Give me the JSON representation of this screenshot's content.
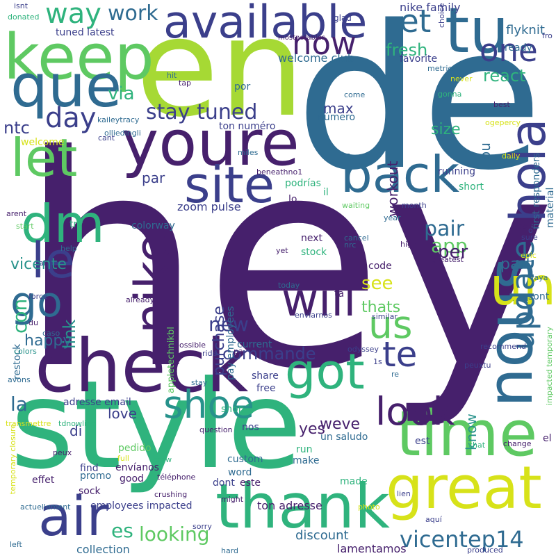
{
  "palette": {
    "dark_purple": "#46206c",
    "indigo": "#3b3f8b",
    "blue": "#2f6b91",
    "teal": "#27928b",
    "green": "#2fb37d",
    "light_green": "#5ec962",
    "lime": "#a6d934",
    "yellow": "#d7e219"
  },
  "words": [
    {
      "text": "hey",
      "color": "#46206c"
    },
    {
      "text": "de",
      "color": "#2f6b91"
    },
    {
      "text": "en",
      "color": "#a6d934"
    },
    {
      "text": "style",
      "color": "#2fb37d"
    },
    {
      "text": "check",
      "color": "#46206c"
    },
    {
      "text": "youre",
      "color": "#46206c"
    },
    {
      "text": "keep",
      "color": "#5ec962"
    },
    {
      "text": "que",
      "color": "#2f6b91"
    },
    {
      "text": "available",
      "color": "#3b3f8b"
    },
    {
      "text": "tu",
      "color": "#2f6b91"
    },
    {
      "text": "time",
      "color": "#5ec962"
    },
    {
      "text": "great",
      "color": "#d7e219"
    },
    {
      "text": "thank",
      "color": "#2fb37d"
    },
    {
      "text": "air",
      "color": "#3b3f8b"
    },
    {
      "text": "nous",
      "color": "#2f6b91"
    },
    {
      "text": "un",
      "color": "#d7e219"
    },
    {
      "text": "got",
      "color": "#2fb37d"
    },
    {
      "text": "back",
      "color": "#2f6b91"
    },
    {
      "text": "site",
      "color": "#3b3f8b"
    },
    {
      "text": "nike",
      "color": "#46206c"
    },
    {
      "text": "hola",
      "color": "#3b3f8b"
    },
    {
      "text": "let",
      "color": "#5ec962"
    },
    {
      "text": "dm",
      "color": "#2fb37d"
    },
    {
      "text": "le",
      "color": "#3b3f8b"
    },
    {
      "text": "go",
      "color": "#2f6b91"
    },
    {
      "text": "will",
      "color": "#46206c"
    },
    {
      "text": "shoe",
      "color": "#27928b"
    },
    {
      "text": "look",
      "color": "#46206c"
    },
    {
      "text": "us",
      "color": "#5ec962"
    },
    {
      "text": "te",
      "color": "#3b3f8b"
    },
    {
      "text": "update",
      "color": "#2f6b91"
    },
    {
      "text": "one",
      "color": "#3b3f8b"
    },
    {
      "text": "now",
      "color": "#46206c"
    },
    {
      "text": "et",
      "color": "#2f6b91"
    },
    {
      "text": "way",
      "color": "#2fb37d"
    },
    {
      "text": "day",
      "color": "#3b3f8b"
    },
    {
      "text": "work",
      "color": "#2f6b91"
    },
    {
      "text": "stay tuned",
      "color": "#3b3f8b"
    },
    {
      "text": "vicentep14",
      "color": "#2f6b91"
    },
    {
      "text": "looking",
      "color": "#5ec962"
    },
    {
      "text": "collection",
      "color": "#2f6b91"
    },
    {
      "text": "lamentamos",
      "color": "#46206c"
    },
    {
      "text": "discount",
      "color": "#2f6b91"
    },
    {
      "text": "ton adresse",
      "color": "#46206c"
    },
    {
      "text": "es",
      "color": "#2fb37d"
    },
    {
      "text": "commande",
      "color": "#3b3f8b"
    },
    {
      "text": "new",
      "color": "#3b3f8b"
    },
    {
      "text": "happy",
      "color": "#2f6b91"
    },
    {
      "text": "la",
      "color": "#2f6b91"
    },
    {
      "text": "love",
      "color": "#3b3f8b"
    },
    {
      "text": "vicente",
      "color": "#27928b"
    },
    {
      "text": "link",
      "color": "#27928b"
    },
    {
      "text": "con",
      "color": "#2fb37d"
    },
    {
      "text": "ntc",
      "color": "#3b3f8b"
    },
    {
      "text": "via",
      "color": "#2fb37d"
    },
    {
      "text": "pair",
      "color": "#2f6b91"
    },
    {
      "text": "app",
      "color": "#5ec962"
    },
    {
      "text": "per",
      "color": "#46206c"
    },
    {
      "text": "part",
      "color": "#2f6b91"
    },
    {
      "text": "see",
      "color": "#d7e219"
    },
    {
      "text": "thats",
      "color": "#5ec962"
    },
    {
      "text": "know",
      "color": "#27928b"
    },
    {
      "text": "weve",
      "color": "#46206c"
    },
    {
      "text": "yes",
      "color": "#46206c"
    },
    {
      "text": "purchase",
      "color": "#3b3f8b"
    },
    {
      "text": "workout",
      "color": "#46206c"
    },
    {
      "text": "size",
      "color": "#2fb37d"
    },
    {
      "text": "react",
      "color": "#2fb37d"
    },
    {
      "text": "fresh",
      "color": "#2fb37d"
    },
    {
      "text": "max",
      "color": "#3b3f8b"
    },
    {
      "text": "ou",
      "color": "#2f6b91"
    },
    {
      "text": "par",
      "color": "#3b3f8b"
    },
    {
      "text": "di",
      "color": "#3b3f8b"
    },
    {
      "text": "zoom pulse",
      "color": "#3b3f8b"
    },
    {
      "text": "pay employees",
      "color": "#2f6b91"
    },
    {
      "text": "appletechnikbl",
      "color": "#5ec962"
    },
    {
      "text": "welcome club",
      "color": "#2f6b91"
    },
    {
      "text": "favorite",
      "color": "#3b3f8b"
    },
    {
      "text": "nike family",
      "color": "#3b3f8b"
    },
    {
      "text": "flyknit",
      "color": "#2f6b91"
    },
    {
      "text": "ready",
      "color": "#2f6b91"
    },
    {
      "text": "tuned latest",
      "color": "#3b3f8b"
    },
    {
      "text": "glad",
      "color": "#3b3f8b"
    },
    {
      "text": "mostnotables",
      "color": "#46206c"
    },
    {
      "text": "ton numéro",
      "color": "#3b3f8b"
    },
    {
      "text": "número",
      "color": "#2f6b91"
    },
    {
      "text": "por",
      "color": "#2f6b91"
    },
    {
      "text": "material",
      "color": "#2f6b91"
    },
    {
      "text": "first responders",
      "color": "#2f6b91"
    },
    {
      "text": "running",
      "color": "#3b3f8b"
    },
    {
      "text": "short",
      "color": "#2fb37d"
    },
    {
      "text": "podrías",
      "color": "#2fb37d"
    },
    {
      "text": "il",
      "color": "#2fb37d"
    },
    {
      "text": "lo",
      "color": "#46206c"
    },
    {
      "text": "next",
      "color": "#46206c"
    },
    {
      "text": "stock",
      "color": "#2fb37d"
    },
    {
      "text": "code",
      "color": "#46206c"
    },
    {
      "text": "ta",
      "color": "#46206c"
    },
    {
      "text": "current",
      "color": "#2f6b91"
    },
    {
      "text": "share",
      "color": "#3b3f8b"
    },
    {
      "text": "free",
      "color": "#3b3f8b"
    },
    {
      "text": "shop",
      "color": "#2fb37d"
    },
    {
      "text": "nos",
      "color": "#3b3f8b"
    },
    {
      "text": "un saludo",
      "color": "#2f6b91"
    },
    {
      "text": "est",
      "color": "#3b3f8b"
    },
    {
      "text": "run",
      "color": "#2fb37d"
    },
    {
      "text": "make",
      "color": "#2f6b91"
    },
    {
      "text": "made",
      "color": "#2fb37d"
    },
    {
      "text": "custom",
      "color": "#2f6b91"
    },
    {
      "text": "word",
      "color": "#2f6b91"
    },
    {
      "text": "este",
      "color": "#46206c"
    },
    {
      "text": "dont",
      "color": "#3b3f8b"
    },
    {
      "text": "good",
      "color": "#46206c"
    },
    {
      "text": "envíanos",
      "color": "#46206c"
    },
    {
      "text": "find",
      "color": "#3b3f8b"
    },
    {
      "text": "promo",
      "color": "#2f6b91"
    },
    {
      "text": "sock",
      "color": "#46206c"
    },
    {
      "text": "effet",
      "color": "#46206c"
    },
    {
      "text": "pedido",
      "color": "#5ec962"
    },
    {
      "text": "adresse email",
      "color": "#3b3f8b"
    },
    {
      "text": "employees impacted",
      "color": "#3b3f8b"
    },
    {
      "text": "colorway",
      "color": "#2f6b91"
    },
    {
      "text": "try",
      "color": "#2fb37d"
    },
    {
      "text": "welcome",
      "color": "#d7e219"
    },
    {
      "text": "restock",
      "color": "#2f6b91"
    },
    {
      "text": "sont",
      "color": "#2f6b91"
    },
    {
      "text": "el",
      "color": "#46206c"
    },
    {
      "text": "impacted temporary",
      "color": "#5ec962"
    },
    {
      "text": "temporary closure",
      "color": "#d7e219"
    },
    {
      "text": "kaileytracy",
      "color": "#2f6b91"
    },
    {
      "text": "olliedingli",
      "color": "#2f6b91"
    },
    {
      "text": "beneathno1",
      "color": "#46206c"
    },
    {
      "text": "isnt",
      "color": "#3b3f8b"
    },
    {
      "text": "donated",
      "color": "#2fb37d"
    },
    {
      "text": "hit",
      "color": "#2f6b91"
    },
    {
      "text": "tap",
      "color": "#46206c"
    },
    {
      "text": "cant",
      "color": "#3b3f8b"
    },
    {
      "text": "miles",
      "color": "#2f6b91"
    },
    {
      "text": "arent",
      "color": "#46206c"
    },
    {
      "text": "start",
      "color": "#5ec962"
    },
    {
      "text": "help",
      "color": "#2f6b91"
    },
    {
      "text": "al",
      "color": "#3b3f8b"
    },
    {
      "text": "force",
      "color": "#3b3f8b"
    },
    {
      "text": "du",
      "color": "#46206c"
    },
    {
      "text": "caso",
      "color": "#2f6b91"
    },
    {
      "text": "colors",
      "color": "#27928b"
    },
    {
      "text": "avons",
      "color": "#2f6b91"
    },
    {
      "text": "transmettre",
      "color": "#d7e219"
    },
    {
      "text": "tdnowling",
      "color": "#2fb37d"
    },
    {
      "text": "question",
      "color": "#46206c"
    },
    {
      "text": "peux",
      "color": "#46206c"
    },
    {
      "text": "full",
      "color": "#d7e219"
    },
    {
      "text": "crew",
      "color": "#2fb37d"
    },
    {
      "text": "actuellement",
      "color": "#2f6b91"
    },
    {
      "text": "crushing",
      "color": "#46206c"
    },
    {
      "text": "might",
      "color": "#46206c"
    },
    {
      "text": "sorry",
      "color": "#3b3f8b"
    },
    {
      "text": "hard",
      "color": "#2f6b91"
    },
    {
      "text": "left",
      "color": "#2f6b91"
    },
    {
      "text": "téléphone",
      "color": "#46206c"
    },
    {
      "text": "photo",
      "color": "#d7e219"
    },
    {
      "text": "aquí",
      "color": "#3b3f8b"
    },
    {
      "text": "lien",
      "color": "#3b3f8b"
    },
    {
      "text": "produced",
      "color": "#3b3f8b"
    },
    {
      "text": "chat",
      "color": "#2fb37d"
    },
    {
      "text": "change",
      "color": "#46206c"
    },
    {
      "text": "recommend",
      "color": "#3b3f8b"
    },
    {
      "text": "peuxtu",
      "color": "#3b3f8b"
    },
    {
      "text": "re",
      "color": "#2f6b91"
    },
    {
      "text": "1s",
      "color": "#3b3f8b"
    },
    {
      "text": "odyssey",
      "color": "#3b3f8b"
    },
    {
      "text": "pa",
      "color": "#46206c"
    },
    {
      "text": "ride",
      "color": "#3b3f8b"
    },
    {
      "text": "possible",
      "color": "#46206c"
    },
    {
      "text": "stay",
      "color": "#2f6b91"
    },
    {
      "text": "enviarnos",
      "color": "#3b3f8b"
    },
    {
      "text": "similar",
      "color": "#3b3f8b"
    },
    {
      "text": "today",
      "color": "#2f6b91"
    },
    {
      "text": "already",
      "color": "#46206c"
    },
    {
      "text": "yet",
      "color": "#46206c"
    },
    {
      "text": "nrc",
      "color": "#2f6b91"
    },
    {
      "text": "cancel",
      "color": "#2f6b91"
    },
    {
      "text": "high",
      "color": "#46206c"
    },
    {
      "text": "greatest",
      "color": "#46206c"
    },
    {
      "text": "epic",
      "color": "#d7e219"
    },
    {
      "text": "vaya",
      "color": "#2f6b91"
    },
    {
      "text": "sold",
      "color": "#46206c"
    },
    {
      "text": "sure",
      "color": "#3b3f8b"
    },
    {
      "text": "o",
      "color": "#3b3f8b"
    },
    {
      "text": "year",
      "color": "#2f6b91"
    },
    {
      "text": "waiting",
      "color": "#5ec962"
    },
    {
      "text": "month",
      "color": "#3b3f8b"
    },
    {
      "text": "daily",
      "color": "#d7e219"
    },
    {
      "text": "ogepercy",
      "color": "#d7e219"
    },
    {
      "text": "best",
      "color": "#46206c"
    },
    {
      "text": "gonna",
      "color": "#2fb37d"
    },
    {
      "text": "come",
      "color": "#2f6b91"
    },
    {
      "text": "never",
      "color": "#d7e219"
    },
    {
      "text": "metrics",
      "color": "#2f6b91"
    },
    {
      "text": "choice",
      "color": "#3b3f8b"
    },
    {
      "text": "fro",
      "color": "#3b3f8b"
    }
  ]
}
